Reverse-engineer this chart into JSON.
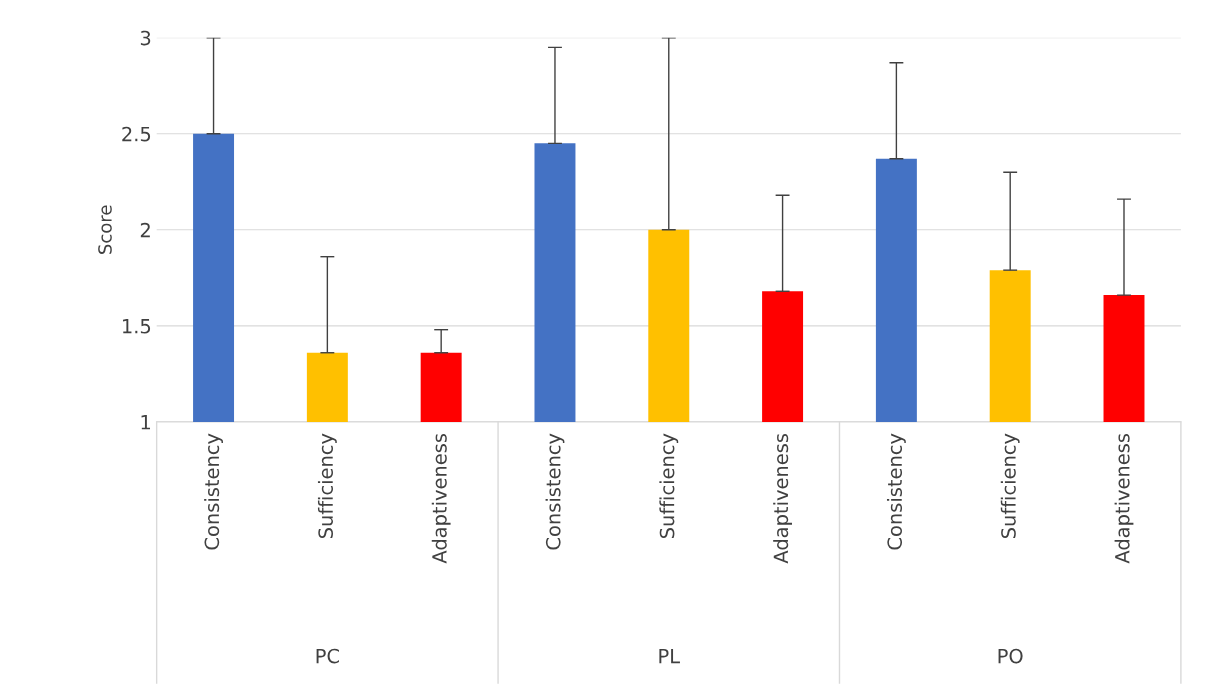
{
  "chart_data": {
    "type": "bar",
    "ylabel": "Score",
    "categories": [
      "Consistency",
      "Sufficiency",
      "Adaptiveness",
      "Consistency",
      "Sufficiency",
      "Adaptiveness",
      "Consistency",
      "Sufficiency",
      "Adaptiveness"
    ],
    "values": [
      2.5,
      1.36,
      1.36,
      2.45,
      2.0,
      1.68,
      2.37,
      1.79,
      1.66
    ],
    "errors": [
      [
        2.5,
        3.0
      ],
      [
        1.36,
        1.86
      ],
      [
        1.36,
        1.48
      ],
      [
        2.45,
        2.95
      ],
      [
        2.0,
        3.0
      ],
      [
        1.68,
        2.18
      ],
      [
        2.37,
        2.87
      ],
      [
        1.79,
        2.3
      ],
      [
        1.66,
        2.16
      ]
    ],
    "colors": [
      "#4472c4",
      "#ffc000",
      "#ff0000",
      "#4472c4",
      "#ffc000",
      "#ff0000",
      "#4472c4",
      "#ffc000",
      "#ff0000"
    ],
    "annotations": [
      "PC",
      "PL",
      "PO"
    ],
    "ylim": [
      1,
      3
    ],
    "yticks": [
      1,
      1.5,
      2,
      2.5,
      3
    ],
    "grid": "y",
    "legend": false
  }
}
